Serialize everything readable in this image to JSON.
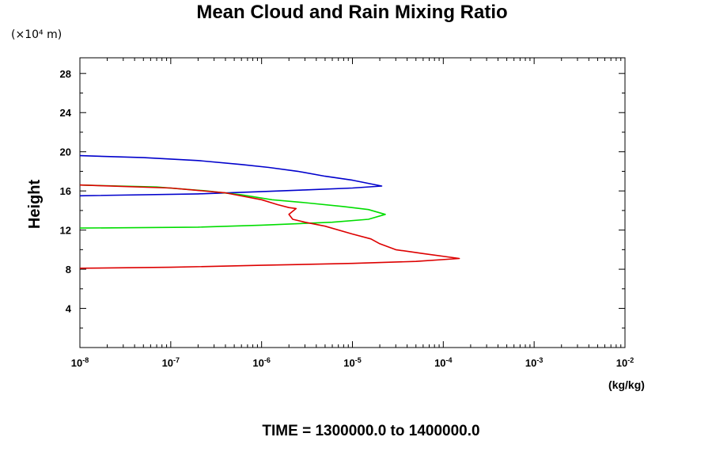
{
  "chart_data": {
    "type": "line",
    "title": "Mean Cloud and Rain Mixing Ratio",
    "y_scale_label": "(×10⁴ m)",
    "ylabel": "Height",
    "xlabel": "(kg/kg)",
    "footer": "TIME = 1300000.0 to 1400000.0",
    "x_scale": "log",
    "xlim": [
      1e-08,
      0.01
    ],
    "ylim": [
      0,
      29.6
    ],
    "x_tick_base": "10",
    "x_tick_exponents": [
      "-8",
      "-7",
      "-6",
      "-5",
      "-4",
      "-3",
      "-2"
    ],
    "y_ticks": [
      "4",
      "8",
      "12",
      "16",
      "20",
      "24",
      "28"
    ],
    "grid": false,
    "series": [
      {
        "color": "#0000cc",
        "points": [
          [
            1e-08,
            19.6
          ],
          [
            5e-08,
            19.4
          ],
          [
            2e-07,
            19.1
          ],
          [
            6e-07,
            18.7
          ],
          [
            1.2e-06,
            18.4
          ],
          [
            2.5e-06,
            18.0
          ],
          [
            5e-06,
            17.5
          ],
          [
            1e-05,
            17.1
          ],
          [
            2.1e-05,
            16.5
          ],
          [
            1e-05,
            16.3
          ],
          [
            3e-06,
            16.1
          ],
          [
            8e-07,
            15.9
          ],
          [
            2e-07,
            15.7
          ],
          [
            1e-08,
            15.5
          ]
        ]
      },
      {
        "color": "#00dd00",
        "points": [
          [
            1e-08,
            16.6
          ],
          [
            7e-08,
            16.4
          ],
          [
            2.5e-07,
            16.0
          ],
          [
            6e-07,
            15.6
          ],
          [
            1.3e-06,
            15.1
          ],
          [
            3e-06,
            14.8
          ],
          [
            8e-06,
            14.4
          ],
          [
            1.5e-05,
            14.1
          ],
          [
            2.3e-05,
            13.6
          ],
          [
            1.5e-05,
            13.1
          ],
          [
            6e-06,
            12.8
          ],
          [
            1e-06,
            12.5
          ],
          [
            2e-07,
            12.3
          ],
          [
            1e-08,
            12.2
          ]
        ]
      },
      {
        "color": "#dd0000",
        "points": [
          [
            1e-08,
            16.6
          ],
          [
            1e-07,
            16.3
          ],
          [
            4e-07,
            15.8
          ],
          [
            1e-06,
            15.1
          ],
          [
            1.5e-06,
            14.6
          ],
          [
            2e-06,
            14.3
          ],
          [
            2.4e-06,
            14.2
          ],
          [
            2e-06,
            13.6
          ],
          [
            2.2e-06,
            13.1
          ],
          [
            3e-06,
            12.8
          ],
          [
            5e-06,
            12.4
          ],
          [
            1e-05,
            11.6
          ],
          [
            1.6e-05,
            11.1
          ],
          [
            2e-05,
            10.6
          ],
          [
            3e-05,
            10.0
          ],
          [
            6e-05,
            9.6
          ],
          [
            0.00015,
            9.1
          ],
          [
            5e-05,
            8.8
          ],
          [
            1e-05,
            8.6
          ],
          [
            1e-06,
            8.4
          ],
          [
            1e-07,
            8.2
          ],
          [
            1e-08,
            8.1
          ]
        ]
      }
    ]
  }
}
